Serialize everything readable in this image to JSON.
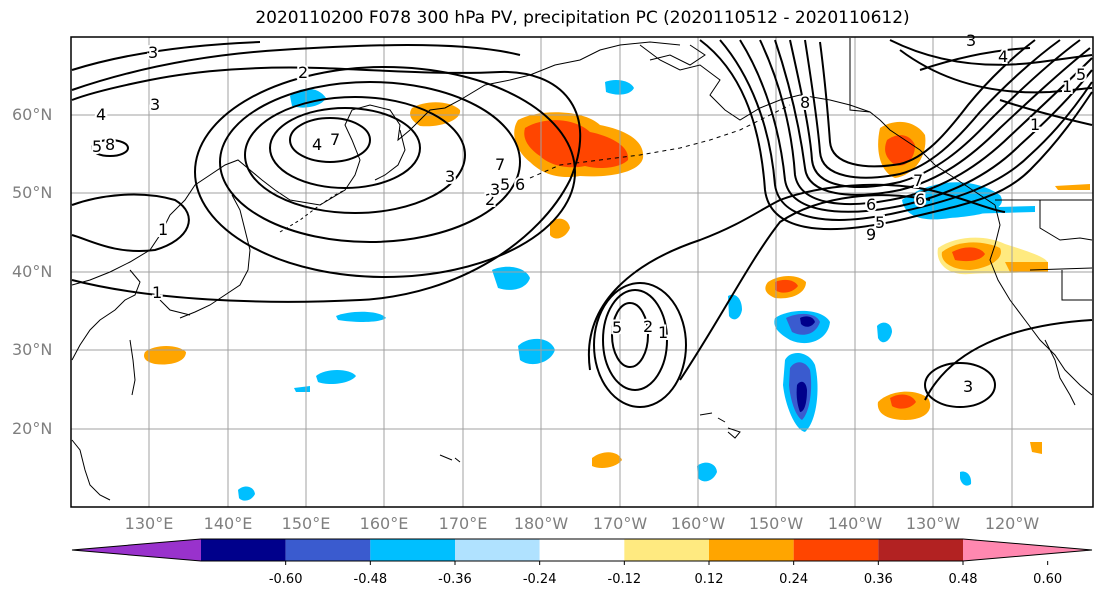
{
  "title": "2020110200 F078 300 hPa PV, precipitation PC (2020110512 - 2020110612)",
  "lat_labels": [
    "60°N",
    "50°N",
    "40°N",
    "30°N",
    "20°N"
  ],
  "lon_labels": [
    "130°E",
    "140°E",
    "150°E",
    "160°E",
    "170°E",
    "180°W",
    "170°W",
    "160°W",
    "150°W",
    "140°W",
    "130°W",
    "120°W"
  ],
  "contour_labels": [
    "3",
    "2",
    "4",
    "3",
    "5",
    "1",
    "1",
    "2",
    "3",
    "5",
    "6",
    "7",
    "3",
    "4",
    "5",
    "2",
    "1",
    "3",
    "9",
    "8",
    "6",
    "7",
    "5",
    "1",
    "1",
    "3",
    "4",
    "5",
    "6",
    "7",
    "8"
  ],
  "colorbar": {
    "ticks": [
      "-0.60",
      "-0.48",
      "-0.36",
      "-0.24",
      "-0.12",
      "0.12",
      "0.24",
      "0.36",
      "0.48",
      "0.60"
    ],
    "colors": [
      "#9932cc",
      "#00008b",
      "#3a5bcf",
      "#00bfff",
      "#b0e2ff",
      "#ffffff",
      "#ffea80",
      "#ffa500",
      "#ff4500",
      "#b22222",
      "#ff88b0"
    ]
  },
  "colors": {
    "contour": "#000000",
    "grid": "#a0a0a0",
    "coast": "#000000"
  }
}
